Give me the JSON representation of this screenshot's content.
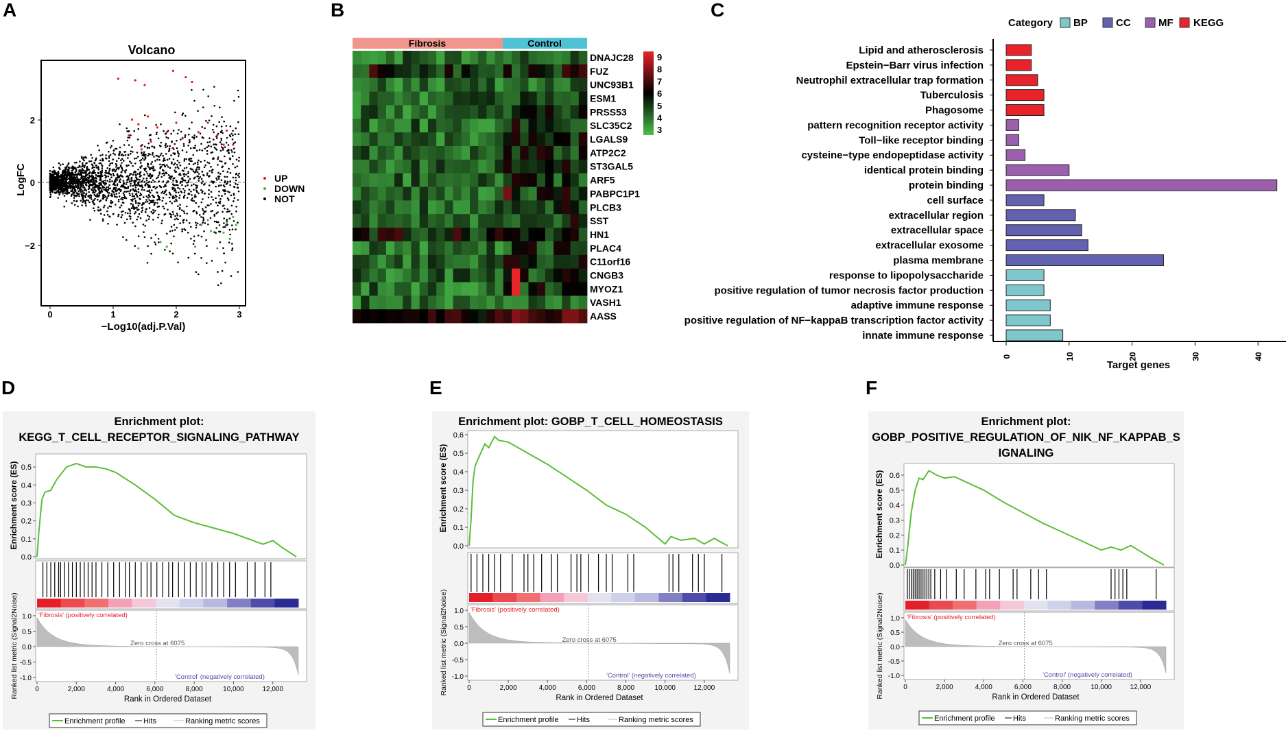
{
  "panels": {
    "a": "A",
    "b": "B",
    "c": "C",
    "d": "D",
    "e": "E",
    "f": "F"
  },
  "volcano": {
    "title": "Volcano",
    "xlabel": "−Log10(adj.P.Val)",
    "ylabel": "LogFC",
    "xticks": [
      "0",
      "1",
      "2",
      "3"
    ],
    "yticks": [
      "2",
      "0",
      "−2"
    ],
    "legend": [
      {
        "label": "UP",
        "color": "#e41a1c"
      },
      {
        "label": "DOWN",
        "color": "#4daf4a"
      },
      {
        "label": "NOT",
        "color": "#000000"
      }
    ]
  },
  "heatmap": {
    "groups": [
      {
        "label": "Fibrosis",
        "color": "#f0968c"
      },
      {
        "label": "Control",
        "color": "#4fc3d4"
      }
    ],
    "genes": [
      "DNAJC28",
      "FUZ",
      "UNC93B1",
      "ESM1",
      "PRSS53",
      "SLC35C2",
      "LGALS9",
      "ATP2C2",
      "ST3GAL5",
      "ARF5",
      "PABPC1P1",
      "PLCB3",
      "SST",
      "HN1",
      "PLAC4",
      "C11orf16",
      "CNGB3",
      "MYOZ1",
      "VASH1",
      "AASS"
    ],
    "scale": [
      "9",
      "8",
      "7",
      "6",
      "5",
      "4",
      "3"
    ]
  },
  "chart_data": [
    {
      "type": "scatter",
      "title": "Volcano",
      "xlabel": "−Log10(adj.P.Val)",
      "ylabel": "LogFC",
      "xlim": [
        -0.15,
        3.1
      ],
      "ylim": [
        -3.8,
        3.9
      ],
      "series": [
        {
          "name": "UP",
          "color": "#e41a1c",
          "points": [
            [
              1.08,
              3.3
            ],
            [
              1.35,
              3.25
            ],
            [
              1.5,
              3.1
            ],
            [
              1.95,
              3.55
            ],
            [
              2.15,
              3.35
            ],
            [
              2.25,
              3.2
            ],
            [
              1.3,
              2.0
            ],
            [
              1.4,
              1.85
            ],
            [
              1.55,
              2.1
            ],
            [
              1.7,
              1.75
            ],
            [
              1.85,
              1.6
            ],
            [
              2.0,
              1.9
            ],
            [
              2.5,
              1.9
            ],
            [
              2.65,
              1.5
            ],
            [
              2.8,
              1.65
            ],
            [
              2.9,
              1.2
            ],
            [
              1.25,
              1.5
            ],
            [
              1.6,
              1.3
            ],
            [
              2.1,
              1.4
            ],
            [
              2.75,
              1.2
            ],
            [
              1.45,
              1.05
            ],
            [
              1.95,
              1.1
            ],
            [
              2.35,
              1.6
            ]
          ]
        },
        {
          "name": "DOWN",
          "color": "#4daf4a",
          "points": [
            [
              1.4,
              -2.1
            ],
            [
              1.75,
              -1.9
            ],
            [
              1.85,
              -2.05
            ],
            [
              2.3,
              -2.05
            ],
            [
              2.55,
              -1.55
            ],
            [
              2.65,
              -2.1
            ],
            [
              2.75,
              -1.6
            ],
            [
              2.8,
              -1.3
            ],
            [
              2.9,
              -1.1
            ],
            [
              2.95,
              -1.35
            ],
            [
              2.5,
              -1.2
            ],
            [
              2.85,
              -1.8
            ],
            [
              2.4,
              -1.35
            ]
          ]
        },
        {
          "name": "NOT",
          "color": "#000000",
          "points": "dense cloud around LogFC 0, |LogFC| widening with -Log10(adj.P.Val)"
        }
      ]
    },
    {
      "type": "heatmap",
      "columns_groups": [
        "Fibrosis",
        "Control"
      ],
      "rows": [
        "DNAJC28",
        "FUZ",
        "UNC93B1",
        "ESM1",
        "PRSS53",
        "SLC35C2",
        "LGALS9",
        "ATP2C2",
        "ST3GAL5",
        "ARF5",
        "PABPC1P1",
        "PLCB3",
        "SST",
        "HN1",
        "PLAC4",
        "C11orf16",
        "CNGB3",
        "MYOZ1",
        "VASH1",
        "AASS"
      ],
      "color_range": [
        3,
        9
      ]
    },
    {
      "type": "bar",
      "orientation": "horizontal",
      "legend_title": "Category",
      "legend": [
        {
          "name": "BP",
          "color": "#7ec8cc"
        },
        {
          "name": "CC",
          "color": "#6262b0"
        },
        {
          "name": "MF",
          "color": "#9b5fad"
        },
        {
          "name": "KEGG",
          "color": "#e8242a"
        }
      ],
      "xlabel": "Target genes",
      "xticks": [
        0,
        10,
        20,
        30,
        40
      ],
      "xlim": [
        0,
        44
      ],
      "categories": [
        "Lipid and atherosclerosis",
        "Epstein−Barr virus infection",
        "Neutrophil extracellular trap formation",
        "Tuberculosis",
        "Phagosome",
        "pattern recognition receptor activity",
        "Toll−like receptor binding",
        "cysteine−type endopeptidase activity",
        "identical protein binding",
        "protein binding",
        "cell surface",
        "extracellular region",
        "extracellular space",
        "extracellular exosome",
        "plasma membrane",
        "response to lipopolysaccharide",
        "positive regulation of tumor necrosis factor production",
        "adaptive immune response",
        "positive regulation of NF−kappaB transcription factor activity",
        "innate immune response"
      ],
      "values": [
        4,
        4,
        5,
        6,
        6,
        2,
        2,
        3,
        10,
        43,
        6,
        11,
        12,
        13,
        25,
        6,
        6,
        7,
        7,
        9
      ],
      "groups": [
        "KEGG",
        "KEGG",
        "KEGG",
        "KEGG",
        "KEGG",
        "MF",
        "MF",
        "MF",
        "MF",
        "MF",
        "CC",
        "CC",
        "CC",
        "CC",
        "CC",
        "BP",
        "BP",
        "BP",
        "BP",
        "BP"
      ]
    },
    {
      "type": "line",
      "panel": "D",
      "title_line1": "Enrichment plot:",
      "title_line2": "KEGG_T_CELL_RECEPTOR_SIGNALING_PATHWAY",
      "ylabel": "Enrichment score (ES)",
      "ylim": [
        0,
        0.55
      ],
      "yticks": [
        "0.5",
        "0.4",
        "0.3",
        "0.2",
        "0.1",
        "0.0"
      ],
      "es_x": [
        0,
        100,
        250,
        400,
        700,
        1000,
        1500,
        2000,
        2500,
        3000,
        3500,
        4000,
        5000,
        6000,
        7000,
        8000,
        9000,
        10000,
        11000,
        11500,
        12000,
        12500,
        13200
      ],
      "es_y": [
        0.0,
        0.15,
        0.32,
        0.36,
        0.37,
        0.43,
        0.5,
        0.52,
        0.5,
        0.5,
        0.49,
        0.47,
        0.4,
        0.32,
        0.23,
        0.19,
        0.16,
        0.13,
        0.09,
        0.07,
        0.09,
        0.05,
        0.0
      ],
      "hits": [
        300,
        500,
        700,
        900,
        1100,
        1200,
        1400,
        1600,
        1800,
        2000,
        2200,
        2400,
        2600,
        2800,
        3000,
        3300,
        3600,
        3900,
        4200,
        4500,
        4700,
        5000,
        5300,
        5600,
        5800,
        6100,
        6400,
        6700,
        6900,
        7200,
        7500,
        7800,
        8100,
        8400,
        8600,
        8900,
        9200,
        9500,
        9800,
        10100,
        10700,
        11100,
        11600,
        11900
      ],
      "metric_yticks": [
        "1.0",
        "0.5",
        "0.0",
        "-0.5",
        "-1.0"
      ],
      "metric_ylabel": "Ranked list metric (Signal2Noise)",
      "pos_label": "'Fibrosis' (positively correlated)",
      "neg_label": "'Control' (negatively correlated)",
      "zero_cross": "Zero cross at 6075",
      "xlabel": "Rank in Ordered Dataset",
      "xticks": [
        "0",
        "2,000",
        "4,000",
        "6,000",
        "8,000",
        "10,000",
        "12,000"
      ],
      "legend": [
        "Enrichment profile",
        "Hits",
        "Ranking metric scores"
      ]
    },
    {
      "type": "line",
      "panel": "E",
      "title_line1": "Enrichment plot: GOBP_T_CELL_HOMEOSTASIS",
      "ylabel": "Enrichment score (ES)",
      "ylim": [
        0,
        0.6
      ],
      "yticks": [
        "0.6",
        "0.5",
        "0.4",
        "0.3",
        "0.2",
        "0.1",
        "0.0"
      ],
      "es_x": [
        0,
        100,
        200,
        300,
        500,
        800,
        1000,
        1300,
        1500,
        2000,
        3000,
        4000,
        5000,
        6000,
        7000,
        8000,
        9000,
        10000,
        10300,
        10800,
        11500,
        12000,
        12500,
        13200
      ],
      "es_y": [
        0.0,
        0.15,
        0.35,
        0.43,
        0.48,
        0.55,
        0.53,
        0.59,
        0.57,
        0.56,
        0.5,
        0.44,
        0.37,
        0.3,
        0.22,
        0.17,
        0.1,
        0.01,
        0.05,
        0.03,
        0.04,
        0.01,
        0.04,
        0.0
      ],
      "hits": [
        100,
        400,
        700,
        1000,
        1300,
        1600,
        2200,
        2800,
        3000,
        3300,
        3700,
        4200,
        4500,
        5200,
        5500,
        5700,
        6100,
        6600,
        7000,
        7300,
        8100,
        8400,
        10200,
        10400,
        10700,
        11400,
        11700,
        12000,
        12900
      ],
      "metric_yticks": [
        "1.0",
        "0.5",
        "0.0",
        "-0.5",
        "-1.0"
      ],
      "metric_ylabel": "Ranked list metric (Signal2Noise)",
      "pos_label": "'Fibrosis' (positively correlated)",
      "neg_label": "'Control' (negatively correlated)",
      "zero_cross": "Zero cross at 6075",
      "xlabel": "Rank in Ordered Dataset",
      "xticks": [
        "0",
        "2,000",
        "4,000",
        "6,000",
        "8,000",
        "10,000",
        "12,000"
      ],
      "legend": [
        "Enrichment profile",
        "Hits",
        "Ranking metric scores"
      ]
    },
    {
      "type": "line",
      "panel": "F",
      "title_line1": "Enrichment plot:",
      "title_line2": "GOBP_POSITIVE_REGULATION_OF_NIK_NF_KAPPAB_S",
      "title_line3": "IGNALING",
      "ylabel": "Enrichment score (ES)",
      "ylim": [
        0,
        0.65
      ],
      "yticks": [
        "0.6",
        "0.5",
        "0.4",
        "0.3",
        "0.2",
        "0.1",
        "0.0"
      ],
      "es_x": [
        0,
        100,
        300,
        500,
        700,
        900,
        1200,
        1600,
        2000,
        2500,
        3000,
        4000,
        5000,
        6000,
        7000,
        8000,
        9000,
        10000,
        10500,
        11000,
        11500,
        12000,
        12500,
        13200
      ],
      "es_y": [
        0.0,
        0.1,
        0.35,
        0.5,
        0.58,
        0.57,
        0.63,
        0.6,
        0.58,
        0.59,
        0.56,
        0.5,
        0.42,
        0.35,
        0.28,
        0.22,
        0.16,
        0.1,
        0.12,
        0.1,
        0.13,
        0.09,
        0.05,
        0.0
      ],
      "hits": [
        100,
        200,
        300,
        400,
        500,
        600,
        700,
        800,
        900,
        1000,
        1100,
        1200,
        1300,
        1500,
        1800,
        2100,
        2600,
        3000,
        3600,
        4100,
        4300,
        4800,
        5500,
        5700,
        6400,
        6800,
        7200,
        10500,
        10700,
        10900,
        11100,
        11300,
        12800
      ],
      "metric_yticks": [
        "1.0",
        "0.5",
        "0.0",
        "-0.5",
        "-1.0"
      ],
      "metric_ylabel": "Ranked list metric (Signal2Noise)",
      "pos_label": "'Fibrosis' (positively correlated)",
      "neg_label": "'Control' (negatively correlated)",
      "zero_cross": "Zero cross at 6075",
      "xlabel": "Rank in Ordered Dataset",
      "xticks": [
        "0",
        "2,000",
        "4,000",
        "6,000",
        "8,000",
        "10,000",
        "12,000"
      ],
      "legend": [
        "Enrichment profile",
        "Hits",
        "Ranking metric scores"
      ]
    }
  ]
}
